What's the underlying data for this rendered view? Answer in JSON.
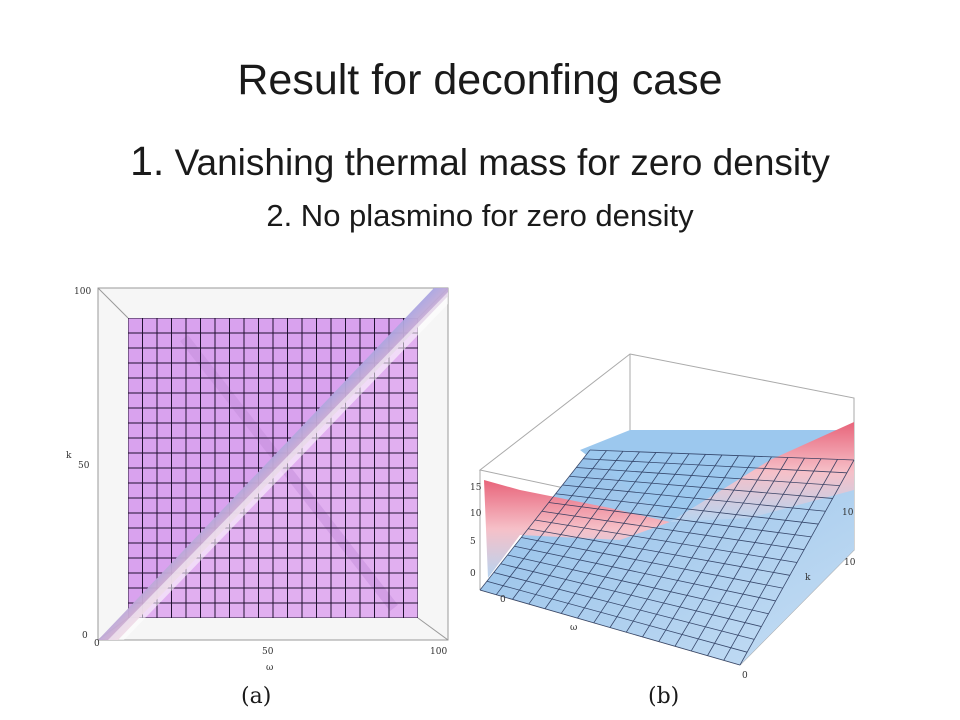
{
  "slide": {
    "title": "Result for  deconfing case",
    "item1_num": "1.",
    "item1_text": " Vanishing thermal mass for zero density",
    "item2": "2. No plasmino for zero density"
  },
  "figures": {
    "a": {
      "caption": "(a)",
      "x_ticks": [
        "0",
        "50",
        "100"
      ],
      "y_ticks": [
        "0",
        "50",
        "100"
      ],
      "x_label": "ω",
      "y_label": "k"
    },
    "b": {
      "caption": "(b)",
      "z_ticks": [
        "0",
        "5",
        "10",
        "15"
      ],
      "x_ticks": [
        "0",
        "10"
      ],
      "y_ticks": [
        "0",
        "10"
      ],
      "x_label": "ω",
      "y_label": "k"
    }
  },
  "colors": {
    "surface_purple": "#d9a2ee",
    "ridge_blue": "#4a63e0",
    "ridge_red": "#e8647a",
    "surface_lightblue": "#9cc8ee",
    "grid": "#1f1030"
  }
}
